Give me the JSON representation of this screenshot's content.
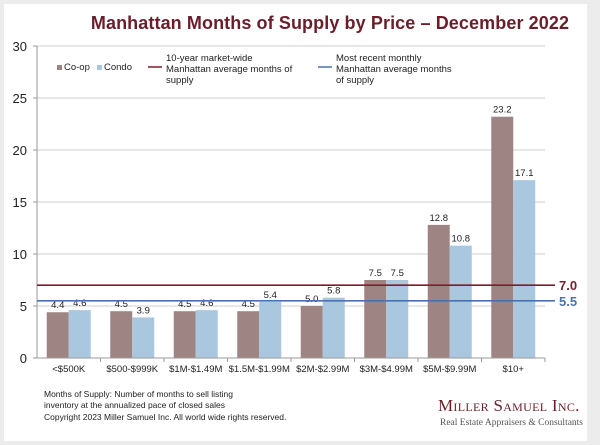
{
  "chart_data": {
    "type": "bar",
    "title": "Manhattan Months of Supply by Price – December 2022",
    "xlabel": "",
    "ylabel": "",
    "ylim": [
      0,
      30
    ],
    "yticks": [
      0,
      5,
      10,
      15,
      20,
      25,
      30
    ],
    "grid": true,
    "legend_position": "top",
    "categories": [
      "<$500K",
      "$500-$999K",
      "$1M-$1.49M",
      "$1.5M-$1.99M",
      "$2M-$2.99M",
      "$3M-$4.99M",
      "$5M-$9.99M",
      "$10+"
    ],
    "series": [
      {
        "name": "Co-op",
        "color": "#9e8583",
        "values": [
          4.4,
          4.5,
          4.5,
          4.5,
          5.0,
          7.5,
          12.8,
          23.2
        ],
        "labels": [
          "4.4",
          "4.5",
          "4.5",
          "4.5",
          "5.0",
          "7.5",
          "12.8",
          "23.2"
        ]
      },
      {
        "name": "Condo",
        "color": "#a9c7de",
        "values": [
          4.6,
          3.9,
          4.6,
          5.4,
          5.8,
          7.5,
          10.8,
          17.1
        ],
        "labels": [
          "4.6",
          "3.9",
          "4.6",
          "5.4",
          "5.8",
          "7.5",
          "10.8",
          "17.1"
        ]
      }
    ],
    "reference_lines": [
      {
        "name": "10-year market-wide Manhattan average months of supply",
        "legend_lines": [
          "10-year market-wide",
          "Manhattan average months of",
          "supply"
        ],
        "value": 7.0,
        "label": "7.0",
        "color": "#7a1f2b"
      },
      {
        "name": "Most recent monthly Manhattan average months of supply",
        "legend_lines": [
          "Most recent monthly",
          "Manhattan average months",
          "of supply"
        ],
        "value": 5.5,
        "label": "5.5",
        "color": "#4a72b0"
      }
    ]
  },
  "footnote": {
    "definition_line1": "Months of Supply: Number of months to sell listing",
    "definition_line2": "inventory at the annualized pace of closed sales",
    "copyright": "Copyright 2023 Miller Samuel Inc.  All world wide rights reserved."
  },
  "logo": {
    "name": "Miller Samuel Inc.",
    "tagline": "Real Estate Appraisers & Consultants"
  }
}
